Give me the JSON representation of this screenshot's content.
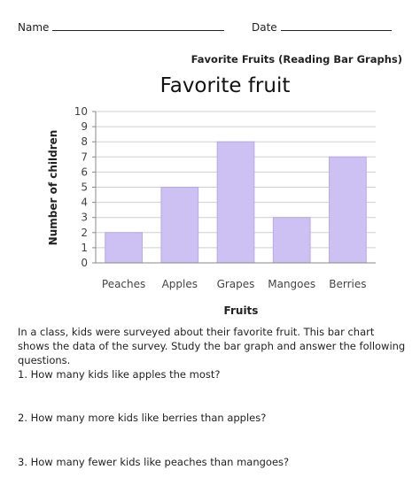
{
  "header": {
    "name_label": "Name",
    "date_label": "Date",
    "worksheet_title": "Favorite Fruits (Reading Bar Graphs)"
  },
  "chart_data": {
    "type": "bar",
    "title": "Favorite fruit",
    "xlabel": "Fruits",
    "ylabel": "Number of children",
    "categories": [
      "Peaches",
      "Apples",
      "Grapes",
      "Mangoes",
      "Berries"
    ],
    "values": [
      2,
      5,
      8,
      3,
      7
    ],
    "ylim": [
      0,
      10
    ],
    "yticks": [
      0,
      1,
      2,
      3,
      4,
      5,
      6,
      7,
      8,
      9,
      10
    ],
    "grid": true,
    "bar_color": "#cdc0f2",
    "bar_border_color": "#b8a8e8"
  },
  "description": "In a class, kids were surveyed about their favorite fruit. This bar chart shows the data of the survey. Study the bar graph and answer the following questions.",
  "questions": [
    "1. How many kids like apples the most?",
    "2. How many more kids like berries than apples?",
    "3. How many fewer kids like peaches than mangoes?"
  ]
}
